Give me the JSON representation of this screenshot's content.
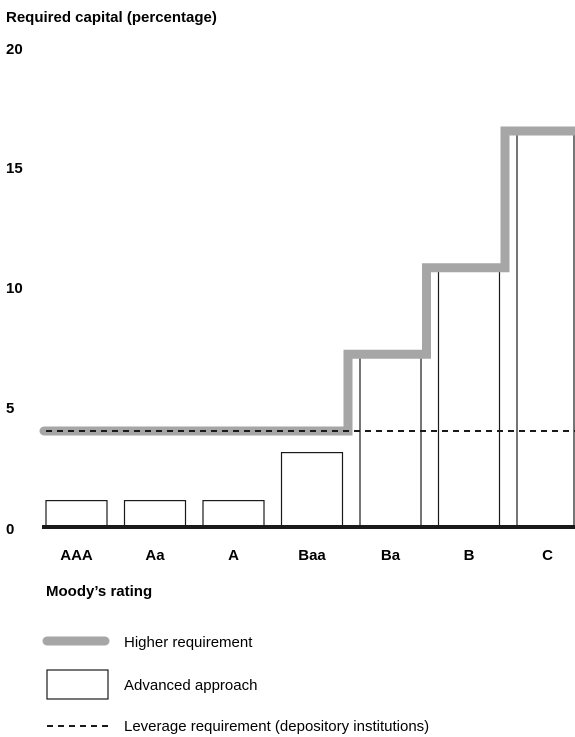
{
  "chart_data": {
    "type": "bar",
    "title": "Required capital (percentage)",
    "xlabel": "Moody’s rating",
    "ylabel": "Required capital (percentage)",
    "ylim": [
      0,
      20
    ],
    "yticks": [
      "0",
      "5",
      "10",
      "15",
      "20"
    ],
    "categories": [
      "AAA",
      "Aa",
      "A",
      "Baa",
      "Ba",
      "B",
      "C"
    ],
    "series": [
      {
        "name": "Higher requirement",
        "style": "step-line",
        "color": "#a6a6a6",
        "values": [
          4.0,
          4.0,
          4.0,
          4.0,
          7.2,
          10.8,
          16.5
        ]
      },
      {
        "name": "Advanced approach",
        "style": "outlined-bar",
        "color": "#1a1a1a",
        "values": [
          1.1,
          1.1,
          1.1,
          3.1,
          7.1,
          10.7,
          16.4
        ]
      },
      {
        "name": "Leverage requirement (depository institutions)",
        "style": "dashed-line",
        "color": "#1a1a1a",
        "values": [
          4.0,
          4.0,
          4.0,
          4.0,
          4.0,
          4.0,
          4.0
        ]
      }
    ],
    "grid": false,
    "legend": "bottom"
  }
}
